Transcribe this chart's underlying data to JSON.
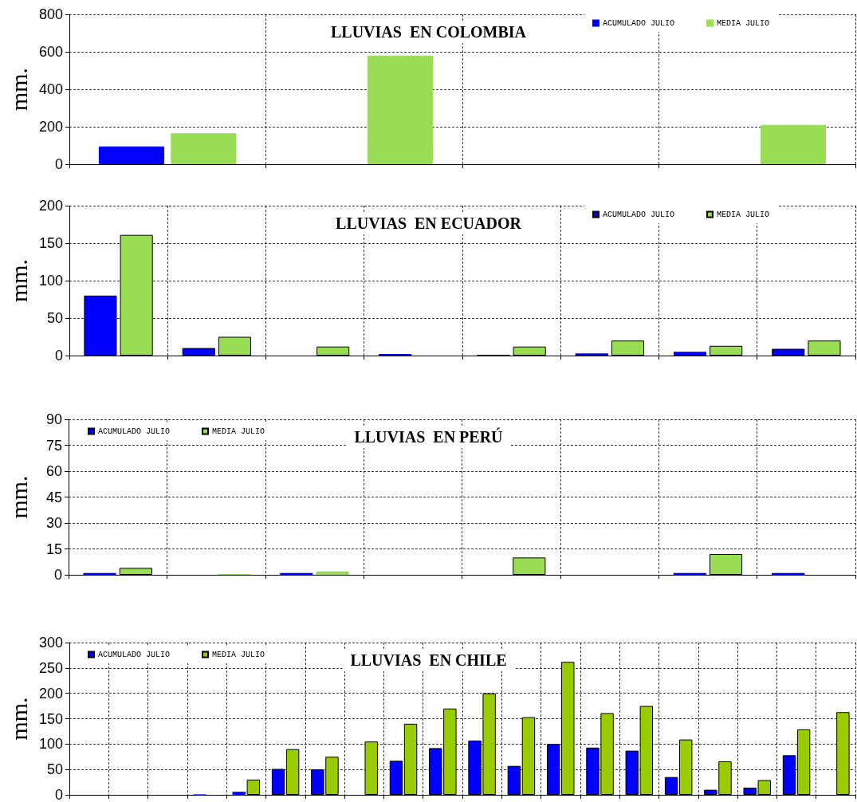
{
  "chart_data": [
    {
      "type": "bar",
      "title": "LLUVIAS  EN COLOMBIA",
      "ylabel": "mm.",
      "categories": [
        null,
        null,
        null,
        null
      ],
      "series": [
        {
          "name": "ACUMULADO JULIO",
          "color": "#0000ff",
          "values": [
            95,
            null,
            null,
            null
          ]
        },
        {
          "name": "MEDIA JULIO",
          "color": "#99dd55",
          "values": [
            165,
            580,
            null,
            210
          ]
        }
      ],
      "ylim": [
        0,
        800
      ],
      "yticks": [
        0,
        200,
        400,
        600,
        800
      ],
      "grid": true,
      "legend": "top right"
    },
    {
      "type": "bar",
      "title": "LLUVIAS  EN ECUADOR",
      "ylabel": "mm.",
      "categories": [
        null,
        null,
        null,
        null,
        null,
        null,
        null,
        null
      ],
      "series": [
        {
          "name": "ACUMULADO JULIO",
          "color": "#0000ff",
          "values": [
            80,
            10,
            null,
            2,
            1,
            3,
            5,
            9
          ]
        },
        {
          "name": "MEDIA JULIO",
          "color": "#99dd55",
          "values": [
            161,
            25,
            12,
            null,
            12,
            20,
            13,
            20
          ]
        }
      ],
      "ylim": [
        0,
        200
      ],
      "yticks": [
        0,
        50,
        100,
        150,
        200
      ],
      "grid": true,
      "legend": "top right"
    },
    {
      "type": "bar",
      "title": "LLUVIAS  EN PERÚ",
      "ylabel": "mm.",
      "categories": [
        null,
        null,
        null,
        null,
        null,
        null,
        null,
        null
      ],
      "series": [
        {
          "name": "ACUMULADO JULIO",
          "color": "#0000ff",
          "values": [
            1,
            null,
            1,
            null,
            null,
            null,
            1,
            1
          ]
        },
        {
          "name": "MEDIA JULIO",
          "color": "#99dd55",
          "values": [
            4,
            0.5,
            2,
            null,
            10,
            null,
            12,
            null
          ]
        }
      ],
      "ylim": [
        0,
        90
      ],
      "yticks": [
        0,
        15,
        30,
        45,
        60,
        75,
        90
      ],
      "grid": true,
      "legend": "top left"
    },
    {
      "type": "bar",
      "title": "LLUVIAS  EN CHILE",
      "ylabel": "mm.",
      "categories": [
        null,
        null,
        null,
        null,
        null,
        null,
        null,
        null,
        null,
        null,
        null,
        null,
        null,
        null,
        null,
        null,
        null,
        null,
        null,
        null
      ],
      "series": [
        {
          "name": "ACUMULADO JULIO",
          "color": "#0000ff",
          "values": [
            null,
            null,
            null,
            1,
            6,
            51,
            50,
            null,
            67,
            92,
            107,
            57,
            100,
            93,
            87,
            35,
            10,
            14,
            78,
            null
          ]
        },
        {
          "name": "MEDIA JULIO",
          "color": "#99cc00",
          "values": [
            null,
            null,
            null,
            null,
            30,
            90,
            75,
            105,
            140,
            170,
            200,
            153,
            262,
            161,
            175,
            109,
            66,
            29,
            129,
            163
          ]
        }
      ],
      "ylim": [
        0,
        300
      ],
      "yticks": [
        0,
        50,
        100,
        150,
        200,
        250,
        300
      ],
      "grid": true,
      "legend": "top left"
    }
  ]
}
